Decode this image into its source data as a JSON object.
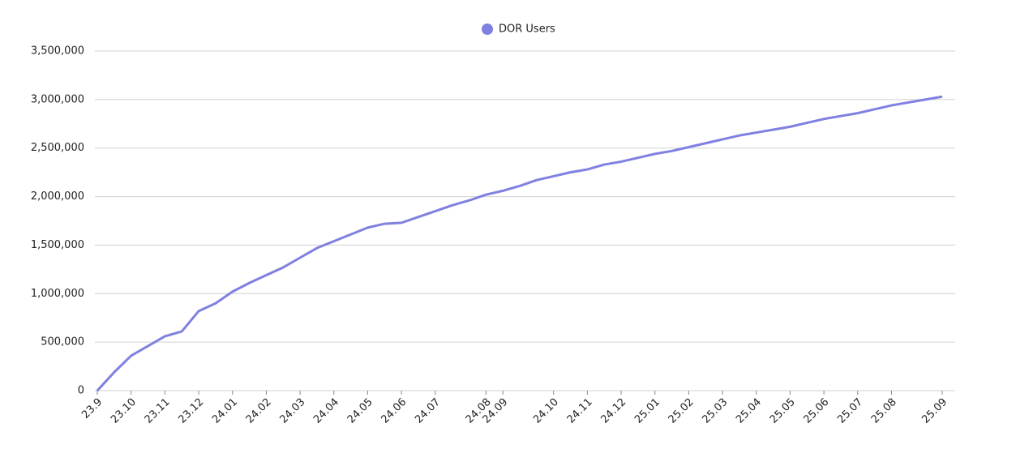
{
  "chart_data": {
    "type": "line",
    "categories": [
      "23.9",
      null,
      "23.10",
      null,
      "23.11",
      null,
      "23.12",
      null,
      "24.01",
      null,
      "24.02",
      null,
      "24.03",
      null,
      "24.04",
      null,
      "24.05",
      null,
      "24.06",
      null,
      "24.07",
      null,
      null,
      "24.08",
      "24.09",
      null,
      null,
      "24.10",
      null,
      "24.11",
      null,
      "24.12",
      null,
      "25.01",
      null,
      "25.02",
      null,
      "25.03",
      null,
      "25.04",
      null,
      "25.05",
      null,
      "25.06",
      null,
      "25.07",
      null,
      "25.08",
      null,
      null,
      "25.09"
    ],
    "series": [
      {
        "name": "DOR Users",
        "color": "#7f80e0",
        "values": [
          0,
          190000,
          360000,
          460000,
          560000,
          610000,
          820000,
          900000,
          1020000,
          1110000,
          1190000,
          1270000,
          1370000,
          1470000,
          1540000,
          1610000,
          1680000,
          1720000,
          1730000,
          1790000,
          1850000,
          1910000,
          1960000,
          2020000,
          2060000,
          2110000,
          2170000,
          2210000,
          2250000,
          2280000,
          2330000,
          2360000,
          2400000,
          2440000,
          2470000,
          2510000,
          2550000,
          2590000,
          2630000,
          2660000,
          2690000,
          2720000,
          2760000,
          2800000,
          2830000,
          2860000,
          2900000,
          2940000,
          2970000,
          3000000,
          3030000
        ]
      }
    ],
    "ylim": [
      0,
      3500000
    ],
    "yticks": [
      0,
      {
        "value": 500000,
        "label": "500,000"
      },
      {
        "value": 1000000,
        "label": "1,000,000"
      },
      {
        "value": 1500000,
        "label": "1,500,000"
      },
      {
        "value": 2000000,
        "label": "2,000,000"
      },
      {
        "value": 2500000,
        "label": "2,500,000"
      },
      {
        "value": 3000000,
        "label": "3,000,000"
      },
      {
        "value": 3500000,
        "label": "3,500,000"
      }
    ],
    "grid": true,
    "legend": "top"
  }
}
